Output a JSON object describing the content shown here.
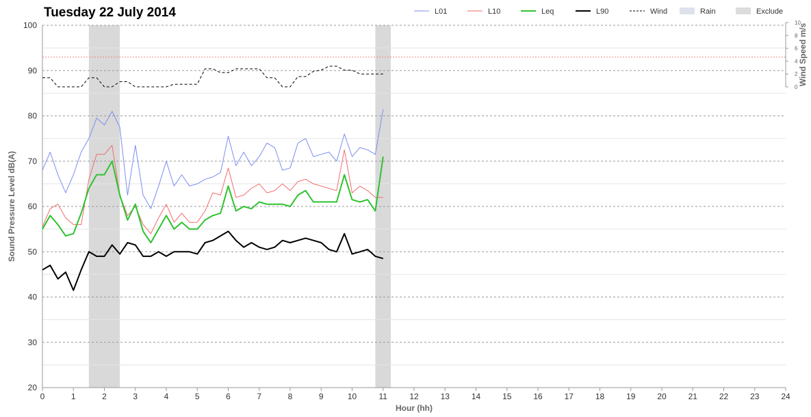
{
  "chart_data": {
    "type": "line",
    "title": "Tuesday 22 July 2014",
    "xlabel": "Hour (hh)",
    "ylabel": "Sound Pressure Level dB(A)",
    "y2label": "Wind Speed m/s",
    "xlim": [
      0,
      24
    ],
    "ylim": [
      20,
      100
    ],
    "y2lim": [
      0,
      10
    ],
    "xticks": [
      "0",
      "1",
      "2",
      "3",
      "4",
      "5",
      "6",
      "7",
      "8",
      "9",
      "10",
      "11",
      "12",
      "13",
      "14",
      "15",
      "16",
      "17",
      "18",
      "19",
      "20",
      "21",
      "22",
      "23",
      "24"
    ],
    "yticks": [
      "20",
      "30",
      "40",
      "50",
      "60",
      "70",
      "80",
      "90",
      "100"
    ],
    "y2ticks": [
      "0",
      "2",
      "4",
      "6",
      "8",
      "10"
    ],
    "grid": "horizontal dashed",
    "reference_line": 93,
    "exclude_periods": [
      [
        1.5,
        2.5
      ],
      [
        10.75,
        11.25
      ]
    ],
    "legend_position": "top-right",
    "legend": [
      {
        "name": "L01",
        "color": "#7b8cf0",
        "style": "thin"
      },
      {
        "name": "L10",
        "color": "#f26b6b",
        "style": "thin"
      },
      {
        "name": "Leq",
        "color": "#2ec22e",
        "style": "thick"
      },
      {
        "name": "L90",
        "color": "#000000",
        "style": "thick"
      },
      {
        "name": "Wind",
        "color": "#000000",
        "style": "dashed"
      },
      {
        "name": "Rain",
        "color": "#dde2ec",
        "style": "box"
      },
      {
        "name": "Exclude",
        "color": "#dcdcdc",
        "style": "box"
      }
    ],
    "x": [
      0,
      0.25,
      0.5,
      0.75,
      1,
      1.25,
      1.5,
      1.75,
      2,
      2.25,
      2.5,
      2.75,
      3,
      3.25,
      3.5,
      3.75,
      4,
      4.25,
      4.5,
      4.75,
      5,
      5.25,
      5.5,
      5.75,
      6,
      6.25,
      6.5,
      6.75,
      7,
      7.25,
      7.5,
      7.75,
      8,
      8.25,
      8.5,
      8.75,
      9,
      9.25,
      9.5,
      9.75,
      10,
      10.25,
      10.5,
      10.75,
      11
    ],
    "series": [
      {
        "name": "L01",
        "color": "#7b8cf0",
        "width": 1,
        "values": [
          68,
          72,
          67,
          63,
          67,
          72,
          75,
          79.5,
          78,
          81,
          77.5,
          62.5,
          73.5,
          62.5,
          59.5,
          64.5,
          70,
          64.5,
          67,
          64.5,
          65,
          66,
          66.5,
          67.5,
          75.5,
          69,
          72,
          69,
          71,
          74,
          73,
          68,
          68.5,
          74,
          75,
          71,
          71.5,
          72,
          70,
          76,
          71,
          73,
          72.5,
          71.5,
          81.5
        ]
      },
      {
        "name": "L10",
        "color": "#f26b6b",
        "width": 1,
        "values": [
          55.5,
          59.5,
          60.5,
          57.5,
          56,
          56,
          66,
          71.5,
          71.5,
          73.5,
          62.5,
          58,
          60,
          56,
          54,
          57.5,
          60.5,
          56.5,
          58.5,
          56.5,
          56.5,
          59,
          63,
          62.5,
          68.5,
          62,
          62.5,
          64,
          65,
          63,
          63.5,
          65,
          63.5,
          65.5,
          66,
          65,
          64.5,
          64,
          63.5,
          72.5,
          63,
          64.5,
          63.5,
          62,
          62
        ]
      },
      {
        "name": "Leq",
        "color": "#2ec22e",
        "width": 2,
        "values": [
          55,
          58,
          56,
          53.5,
          54,
          58.5,
          64,
          67,
          67,
          70,
          62.5,
          57,
          60.5,
          54.5,
          52,
          55,
          58,
          55,
          56.5,
          55,
          55,
          57,
          58,
          58.5,
          64.5,
          59,
          60,
          59.5,
          61,
          60.5,
          60.5,
          60.5,
          60,
          62.5,
          63.5,
          61,
          61,
          61,
          61,
          67,
          61.5,
          61,
          61.5,
          59,
          71
        ]
      },
      {
        "name": "L90",
        "color": "#000000",
        "width": 2,
        "values": [
          46,
          47,
          44,
          45.5,
          41.5,
          46,
          50,
          49,
          49,
          51.5,
          49.5,
          52,
          51.5,
          49,
          49,
          50,
          49,
          50,
          50,
          50,
          49.5,
          52,
          52.5,
          53.5,
          54.5,
          52.5,
          51,
          52,
          51,
          50.5,
          51,
          52.5,
          52,
          52.5,
          53,
          52.5,
          52,
          50.5,
          50,
          54,
          49.5,
          50,
          50.5,
          49,
          48.5
        ]
      },
      {
        "name": "Wind",
        "color": "#000000",
        "width": 1,
        "dashed": true,
        "axis": "right",
        "x": [
          0,
          0.25,
          0.5,
          0.75,
          1,
          1.25,
          1.5,
          1.75,
          2,
          2.25,
          2.5,
          2.75,
          3,
          3.25,
          3.5,
          3.75,
          4,
          4.25,
          4.5,
          4.75,
          5,
          5.25,
          5.5,
          5.75,
          6,
          6.25,
          6.5,
          6.75,
          7,
          7.25,
          7.5,
          7.75,
          8,
          8.25,
          8.5,
          8.75,
          9,
          9.25,
          9.5,
          9.75,
          10,
          10.25,
          10.5,
          10.75,
          11
        ],
        "values": [
          1.4,
          1.4,
          0,
          0,
          0,
          0,
          1.4,
          1.4,
          0,
          0,
          0.8,
          0.8,
          0,
          0,
          0,
          0,
          0,
          0.4,
          0.4,
          0.4,
          0.4,
          2.8,
          2.8,
          2.2,
          2.2,
          2.8,
          2.8,
          2.8,
          2.8,
          1.4,
          1.4,
          0,
          0,
          1.6,
          1.6,
          2.4,
          2.6,
          3.2,
          3.2,
          2.6,
          2.6,
          2,
          2,
          2,
          2
        ]
      }
    ]
  }
}
